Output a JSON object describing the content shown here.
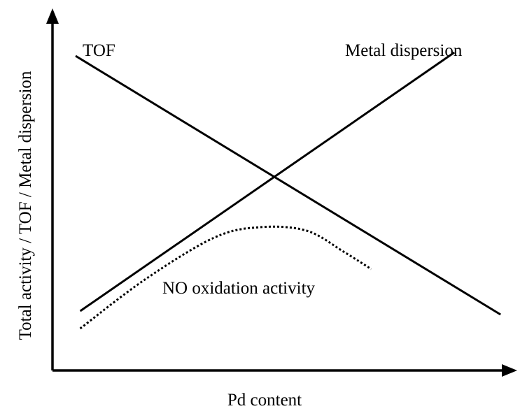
{
  "chart_data": {
    "type": "line",
    "xlabel": "Pd content",
    "ylabel": "Total activity / TOF / Metal dispersion",
    "xlim": [
      0,
      100
    ],
    "ylim": [
      0,
      100
    ],
    "grid": false,
    "ticks": false,
    "series": [
      {
        "name": "TOF",
        "style": "solid",
        "x": [
          5,
          97
        ],
        "y": [
          90,
          16
        ]
      },
      {
        "name": "Metal dispersion",
        "style": "solid",
        "x": [
          6,
          87
        ],
        "y": [
          17,
          91
        ]
      },
      {
        "name": "NO oxidation activity",
        "style": "dotted",
        "x": [
          6,
          20,
          35,
          45,
          55,
          63,
          69
        ],
        "y": [
          12,
          26,
          38,
          41,
          40,
          34,
          29
        ]
      }
    ]
  }
}
